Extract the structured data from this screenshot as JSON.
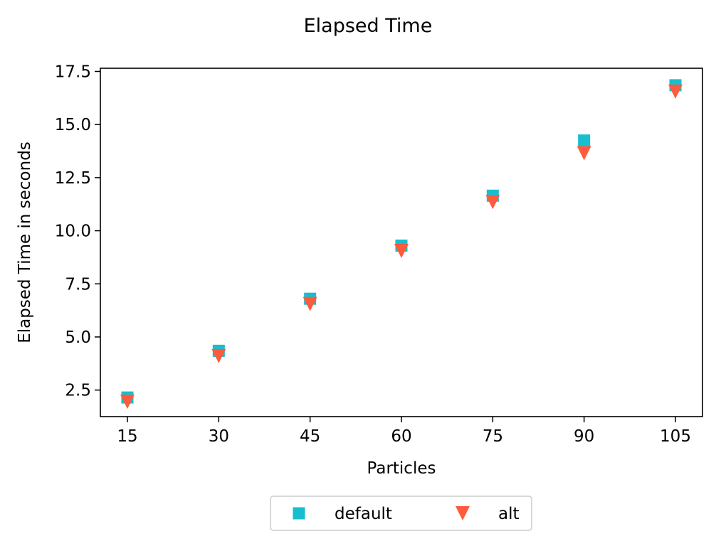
{
  "chart_data": {
    "type": "scatter",
    "title": "Elapsed Time",
    "xlabel": "Particles",
    "ylabel": "Elapsed Time in seconds",
    "x": [
      15,
      30,
      45,
      60,
      75,
      90,
      105
    ],
    "xticks": [
      15,
      30,
      45,
      60,
      75,
      90,
      105
    ],
    "yticks": [
      "2.5",
      "5.0",
      "7.5",
      "10.0",
      "12.5",
      "15.0",
      "17.5"
    ],
    "ylim": [
      1.25,
      17.65
    ],
    "grid": false,
    "legend": "bottom-center",
    "series": [
      {
        "name": "default",
        "marker": "square",
        "color": "#17becf",
        "values": [
          2.15,
          4.35,
          6.8,
          9.3,
          11.65,
          14.25,
          16.85
        ]
      },
      {
        "name": "alt",
        "marker": "triangle-down",
        "color": "#ff5a3c",
        "values": [
          1.95,
          4.1,
          6.55,
          9.05,
          11.35,
          13.65,
          16.55
        ]
      }
    ]
  }
}
